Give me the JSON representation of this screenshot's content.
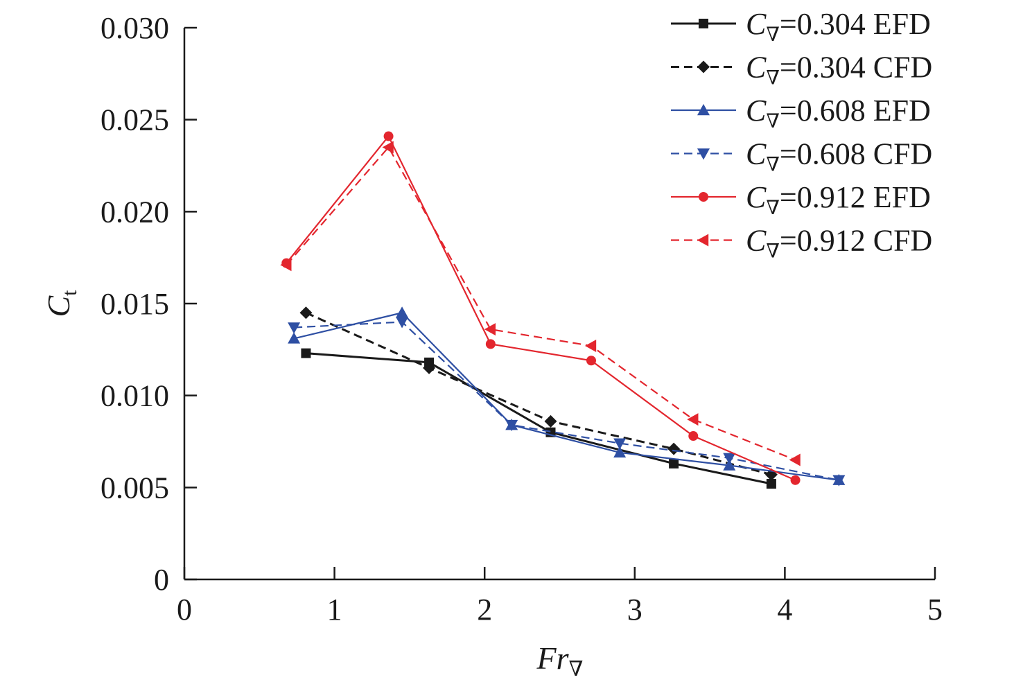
{
  "chart_data": {
    "type": "line",
    "title": "",
    "xlabel": {
      "main": "Fr",
      "sub": "∇"
    },
    "ylabel": {
      "main": "C",
      "sub": "t"
    },
    "xlim": [
      0,
      5
    ],
    "ylim": [
      0,
      0.03
    ],
    "xticks": [
      0,
      1,
      2,
      3,
      4,
      5
    ],
    "xtick_labels": [
      "0",
      "1",
      "2",
      "3",
      "4",
      "5"
    ],
    "yticks": [
      0,
      0.005,
      0.01,
      0.015,
      0.02,
      0.025,
      0.03
    ],
    "ytick_labels": [
      "0",
      "0.005",
      "0.010",
      "0.015",
      "0.020",
      "0.025",
      "0.030"
    ],
    "grid": false,
    "legend_position": "top-right",
    "series": [
      {
        "name": "C∇=0.304 EFD",
        "legend": {
          "c": "C",
          "sub": "∇",
          "rest": "=0.304 EFD"
        },
        "color": "#1a1a1a",
        "dash": "solid",
        "marker": "square",
        "x": [
          0.81,
          1.63,
          2.44,
          3.26,
          3.91
        ],
        "y": [
          0.0123,
          0.0118,
          0.008,
          0.0063,
          0.0052
        ]
      },
      {
        "name": "C∇=0.304 CFD",
        "legend": {
          "c": "C",
          "sub": "∇",
          "rest": "=0.304 CFD"
        },
        "color": "#1a1a1a",
        "dash": "dashed",
        "marker": "diamond",
        "x": [
          0.81,
          1.63,
          2.44,
          3.26,
          3.91
        ],
        "y": [
          0.0145,
          0.0115,
          0.0086,
          0.0071,
          0.0057
        ]
      },
      {
        "name": "C∇=0.608 EFD",
        "legend": {
          "c": "C",
          "sub": "∇",
          "rest": "=0.608 EFD"
        },
        "color": "#2e4fa3",
        "dash": "solid",
        "marker": "triangle-up",
        "x": [
          0.73,
          1.45,
          2.18,
          2.9,
          3.63,
          4.36
        ],
        "y": [
          0.0131,
          0.0145,
          0.0084,
          0.0069,
          0.0062,
          0.0054
        ]
      },
      {
        "name": "C∇=0.608 CFD",
        "legend": {
          "c": "C",
          "sub": "∇",
          "rest": "=0.608 CFD"
        },
        "color": "#2e4fa3",
        "dash": "dashed",
        "marker": "triangle-down",
        "x": [
          0.73,
          1.45,
          2.18,
          2.9,
          3.63,
          4.36
        ],
        "y": [
          0.0137,
          0.014,
          0.0084,
          0.0074,
          0.0066,
          0.0054
        ]
      },
      {
        "name": "C∇=0.912 EFD",
        "legend": {
          "c": "C",
          "sub": "∇",
          "rest": "=0.912 EFD"
        },
        "color": "#e3262e",
        "dash": "solid",
        "marker": "circle",
        "x": [
          0.68,
          1.36,
          2.04,
          2.71,
          3.39,
          4.07
        ],
        "y": [
          0.0172,
          0.0241,
          0.0128,
          0.0119,
          0.0078,
          0.0054
        ]
      },
      {
        "name": "C∇=0.912 CFD",
        "legend": {
          "c": "C",
          "sub": "∇",
          "rest": "=0.912 CFD"
        },
        "color": "#e3262e",
        "dash": "dashed",
        "marker": "triangle-left",
        "x": [
          0.68,
          1.36,
          2.04,
          2.71,
          3.39,
          4.07
        ],
        "y": [
          0.0171,
          0.0235,
          0.0136,
          0.0127,
          0.0087,
          0.0065
        ]
      }
    ]
  }
}
